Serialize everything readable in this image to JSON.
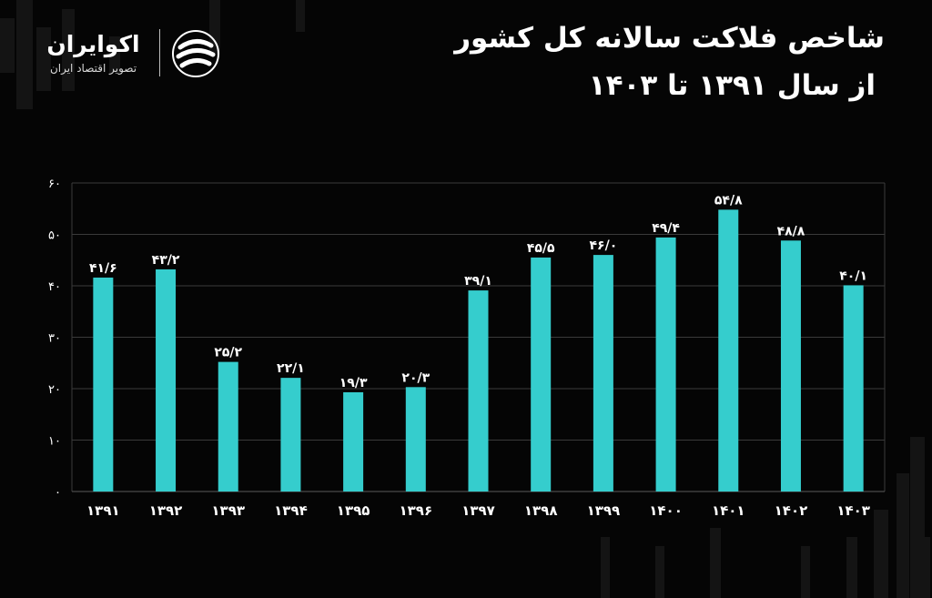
{
  "header": {
    "title_line1": "شاخص فلاکت سالانه کل کشور",
    "title_line2": "از سال ۱۳۹۱ تا ۱۴۰۳"
  },
  "brand": {
    "name": "اکوایران",
    "tagline": "تصویر اقتصاد ایران"
  },
  "colors": {
    "background": "#050505",
    "bar": "#35cdcd",
    "grid": "#3a3a3a",
    "text": "#ffffff"
  },
  "chart_data": {
    "type": "bar",
    "title": "شاخص فلاکت سالانه کل کشور از سال ۱۳۹۱ تا ۱۴۰۳",
    "xlabel": "",
    "ylabel": "",
    "ylim": [
      0,
      60
    ],
    "yticks": [
      0,
      10,
      20,
      30,
      40,
      50,
      60
    ],
    "ytick_labels": [
      "۰",
      "۱۰",
      "۲۰",
      "۳۰",
      "۴۰",
      "۵۰",
      "۶۰"
    ],
    "grid": true,
    "categories": [
      "۱۳۹۱",
      "۱۳۹۲",
      "۱۳۹۳",
      "۱۳۹۴",
      "۱۳۹۵",
      "۱۳۹۶",
      "۱۳۹۷",
      "۱۳۹۸",
      "۱۳۹۹",
      "۱۴۰۰",
      "۱۴۰۱",
      "۱۴۰۲",
      "۱۴۰۳"
    ],
    "values": [
      41.6,
      43.2,
      25.2,
      22.1,
      19.3,
      20.3,
      39.1,
      45.5,
      46.0,
      49.4,
      54.8,
      48.8,
      40.1
    ],
    "value_labels": [
      "۴۱/۶",
      "۴۳/۲",
      "۲۵/۲",
      "۲۲/۱",
      "۱۹/۳",
      "۲۰/۳",
      "۳۹/۱",
      "۴۵/۵",
      "۴۶/۰",
      "۴۹/۴",
      "۵۴/۸",
      "۴۸/۸",
      "۴۰/۱"
    ]
  }
}
